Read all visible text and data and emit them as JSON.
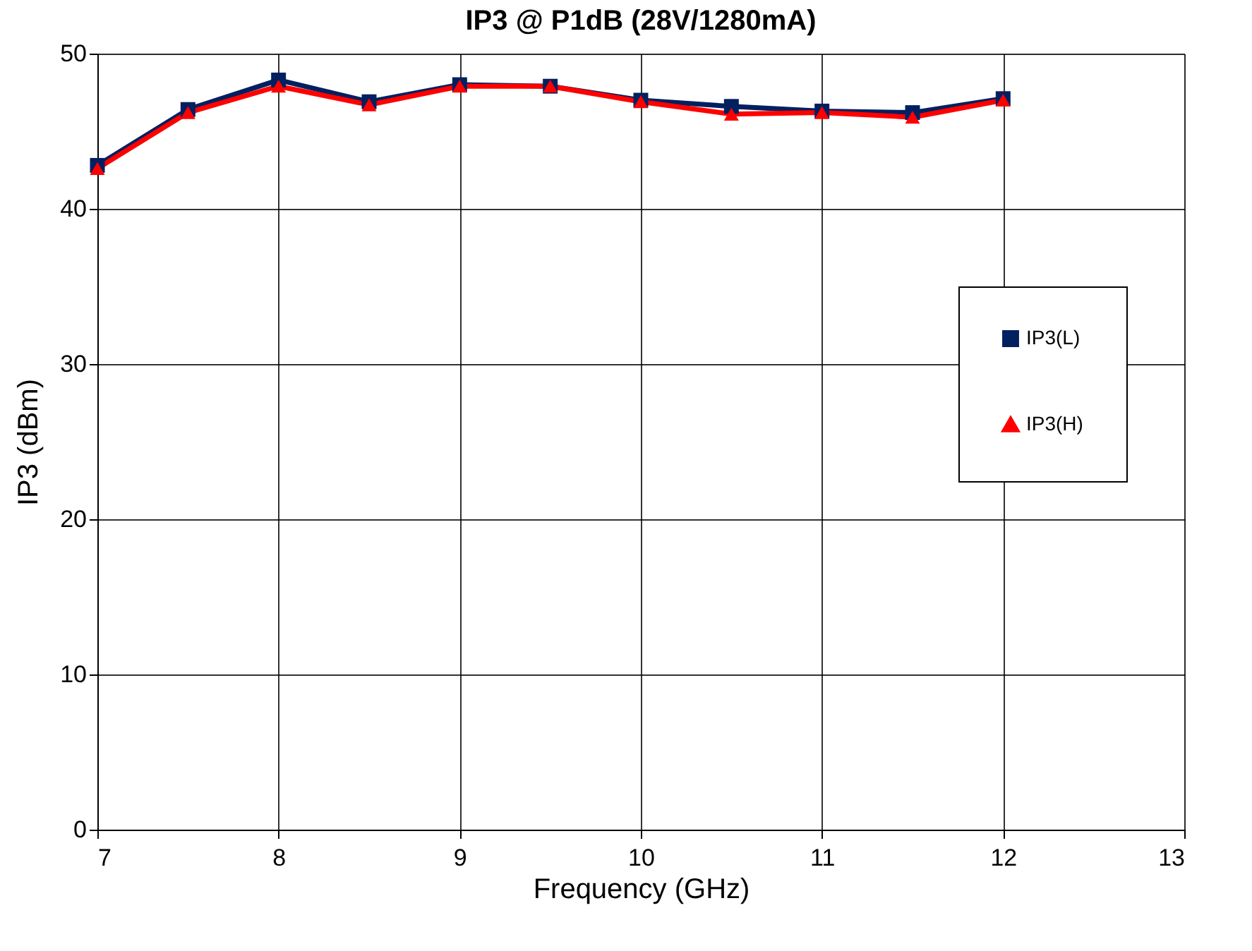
{
  "chart_data": {
    "type": "line",
    "title": "IP3 @ P1dB (28V/1280mA)",
    "xlabel": "Frequency (GHz)",
    "ylabel": "IP3 (dBm)",
    "x": [
      7,
      7.5,
      8,
      8.5,
      9,
      9.5,
      10,
      10.5,
      11,
      11.5,
      12
    ],
    "series": [
      {
        "name": "IP3(L)",
        "color": "#002060",
        "marker": "square",
        "values": [
          42.8,
          46.4,
          48.3,
          46.9,
          48.0,
          47.9,
          47.0,
          46.6,
          46.3,
          46.2,
          47.1
        ]
      },
      {
        "name": "IP3(H)",
        "color": "#ff0000",
        "marker": "triangle",
        "values": [
          42.6,
          46.2,
          47.9,
          46.7,
          47.9,
          47.9,
          46.9,
          46.1,
          46.2,
          45.9,
          47.0
        ]
      }
    ],
    "xlim": [
      7,
      13
    ],
    "xticks": [
      7,
      8,
      9,
      10,
      11,
      12,
      13
    ],
    "ylim": [
      0,
      50
    ],
    "yticks": [
      0,
      10,
      20,
      30,
      40,
      50
    ],
    "grid": true,
    "legend": "right",
    "line_style": "solid"
  }
}
